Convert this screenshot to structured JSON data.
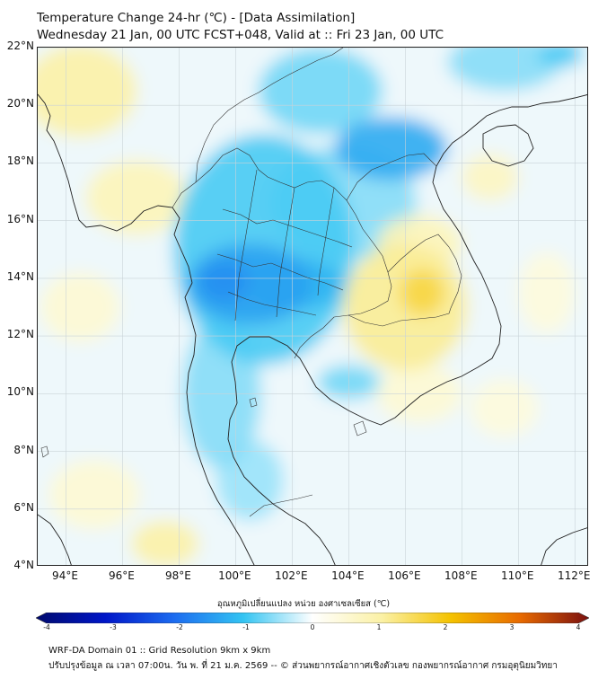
{
  "title_line1": "Temperature Change 24-hr (℃) - [Data Assimilation]",
  "title_line2": "Wednesday 21 Jan, 00 UTC FCST+048, Valid at :: Fri 23 Jan, 00 UTC",
  "map": {
    "lat_range": [
      4,
      22
    ],
    "lon_range": [
      93,
      112.5
    ],
    "lat_ticks": [
      "22°N",
      "20°N",
      "18°N",
      "16°N",
      "14°N",
      "12°N",
      "10°N",
      "8°N",
      "6°N",
      "4°N"
    ],
    "lon_ticks": [
      "94°E",
      "96°E",
      "98°E",
      "100°E",
      "102°E",
      "104°E",
      "106°E",
      "108°E",
      "110°E",
      "112°E"
    ],
    "gridlines": true,
    "field_blobs": [
      {
        "lon": 101.0,
        "lat": 15.0,
        "rlon": 3.2,
        "rlat": 4.0,
        "value": -0.9
      },
      {
        "lon": 100.5,
        "lat": 13.8,
        "rlon": 2.2,
        "rlat": 1.4,
        "value": -1.4
      },
      {
        "lon": 102.2,
        "lat": 13.8,
        "rlon": 1.6,
        "rlat": 0.9,
        "value": -1.2
      },
      {
        "lon": 99.6,
        "lat": 13.9,
        "rlon": 0.9,
        "rlat": 0.7,
        "value": -1.6
      },
      {
        "lon": 105.5,
        "lat": 18.5,
        "rlon": 2.0,
        "rlat": 1.1,
        "value": -1.3
      },
      {
        "lon": 103.0,
        "lat": 20.5,
        "rlon": 2.2,
        "rlat": 1.5,
        "value": -0.7
      },
      {
        "lon": 103.8,
        "lat": 16.6,
        "rlon": 2.6,
        "rlat": 2.0,
        "value": -0.6
      },
      {
        "lon": 99.5,
        "lat": 10.0,
        "rlon": 1.4,
        "rlat": 2.6,
        "value": -0.6
      },
      {
        "lon": 100.5,
        "lat": 7.0,
        "rlon": 1.2,
        "rlat": 1.4,
        "value": -0.5
      },
      {
        "lon": 104.0,
        "lat": 10.4,
        "rlon": 1.1,
        "rlat": 0.6,
        "value": -0.7
      },
      {
        "lon": 109.5,
        "lat": 21.5,
        "rlon": 2.0,
        "rlat": 1.0,
        "value": -0.6
      },
      {
        "lon": 111.5,
        "lat": 21.8,
        "rlon": 0.8,
        "rlat": 0.5,
        "value": -0.9
      },
      {
        "lon": 106.0,
        "lat": 13.0,
        "rlon": 2.2,
        "rlat": 2.2,
        "value": 1.1
      },
      {
        "lon": 106.6,
        "lat": 13.5,
        "rlon": 0.8,
        "rlat": 0.8,
        "value": 1.6
      },
      {
        "lon": 106.5,
        "lat": 15.2,
        "rlon": 1.5,
        "rlat": 1.0,
        "value": 0.8
      },
      {
        "lon": 94.5,
        "lat": 20.5,
        "rlon": 2.0,
        "rlat": 1.6,
        "value": 1.0
      },
      {
        "lon": 96.5,
        "lat": 16.8,
        "rlon": 1.8,
        "rlat": 1.3,
        "value": 0.8
      },
      {
        "lon": 97.5,
        "lat": 4.8,
        "rlon": 1.2,
        "rlat": 0.8,
        "value": 1.0
      },
      {
        "lon": 109.0,
        "lat": 17.5,
        "rlon": 1.0,
        "rlat": 0.8,
        "value": 0.7
      },
      {
        "lon": 94.5,
        "lat": 13.0,
        "rlon": 1.4,
        "rlat": 1.2,
        "value": 0.5
      },
      {
        "lon": 95.0,
        "lat": 6.5,
        "rlon": 1.6,
        "rlat": 1.2,
        "value": 0.5
      },
      {
        "lon": 106.5,
        "lat": 10.0,
        "rlon": 1.5,
        "rlat": 1.0,
        "value": 0.5
      },
      {
        "lon": 109.5,
        "lat": 9.5,
        "rlon": 1.2,
        "rlat": 1.0,
        "value": 0.4
      },
      {
        "lon": 111.0,
        "lat": 13.5,
        "rlon": 1.0,
        "rlat": 1.4,
        "value": 0.4
      }
    ]
  },
  "colorbar": {
    "title": "อุณหภูมิเปลี่ยนแปลง หน่วย องศาเซลเซียส (℃)",
    "range": [
      -4,
      4
    ],
    "ticks": [
      "-4",
      "-3",
      "-2",
      "-1",
      "0",
      "1",
      "2",
      "3",
      "4"
    ],
    "colors": {
      "minus4": "#000a6e",
      "minus3": "#0016c8",
      "minus2": "#1c6cf0",
      "minus1": "#33c4f2",
      "zero": "#ffffff",
      "plus1": "#fbf1a6",
      "plus2": "#f4c200",
      "plus3": "#e86a00",
      "plus4": "#7a0f0f"
    }
  },
  "footer_line1": "WRF-DA Domain 01 :: Grid Resolution 9km x 9km",
  "footer_line2": "ปรับปรุงข้อมูล ณ เวลา 07:00น. วัน พ. ที่ 21 ม.ค. 2569 -- © ส่วนพยากรณ์อากาศเชิงตัวเลข กองพยากรณ์อากาศ กรมอุตุนิยมวิทยา"
}
